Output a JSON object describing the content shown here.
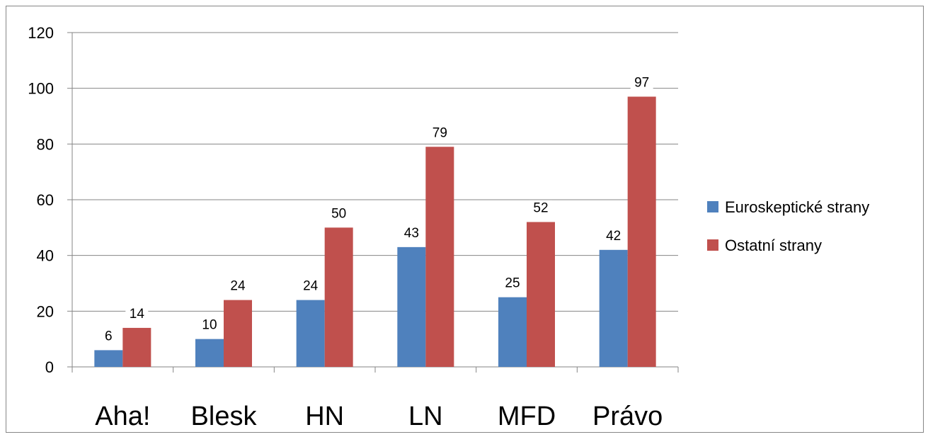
{
  "chart_data": {
    "type": "bar",
    "categories": [
      "Aha!",
      "Blesk",
      "HN",
      "LN",
      "MFD",
      "Právo"
    ],
    "series": [
      {
        "name": "Euroskeptické strany",
        "color": "#4F81BD",
        "values": [
          6,
          10,
          24,
          43,
          25,
          42
        ]
      },
      {
        "name": "Ostatní strany",
        "color": "#C0504D",
        "values": [
          14,
          24,
          50,
          79,
          52,
          97
        ]
      }
    ],
    "yticks": [
      0,
      20,
      40,
      60,
      80,
      100,
      120
    ],
    "ylim": [
      0,
      120
    ],
    "grid": true,
    "legend_position": "right",
    "title": "",
    "xlabel": "",
    "ylabel": ""
  }
}
